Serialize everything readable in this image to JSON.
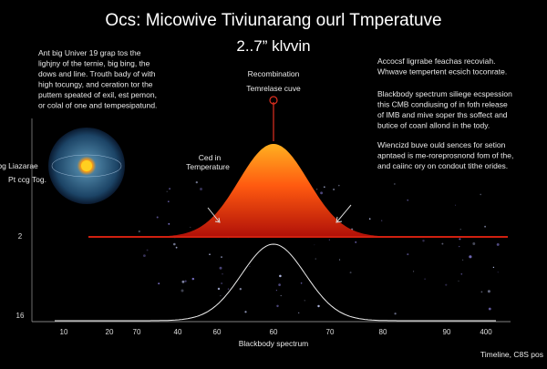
{
  "header": {
    "title": "Ocs: Micowive Tiviunarang ourl Tmperatuve",
    "subtitle": "2..7” klvvin"
  },
  "left_text": [
    "Ant big Univer 19 grap tos the",
    "lighjny of the ternie, big bing, the",
    "dows and line. Trouth bady of with",
    "high tocungy, and ceration tor the",
    "puttem speated of exil, est pemon,",
    "or colal of one and tempesipatund."
  ],
  "right_top": [
    "Accocsf ligrrabe feachas recoviah.",
    "Whwave tempertent ecsich toconrate."
  ],
  "right_mid": [
    "Blackbody spectrum siliege ecspession",
    "this CMB condiusing of in foth release",
    "of IMB and mive soper ths soffect and",
    "butice of coanl allond in the tody."
  ],
  "right_low": [
    "Wiencizd buve ould sences for setion",
    "apntaed is me-roreprosnond fom of the,",
    "and caiinc ory on condout tithe orides."
  ],
  "center_label": [
    "Recombination",
    "Temrelase cuve"
  ],
  "left_label": [
    "Ced in",
    "Temperature"
  ],
  "y_label": [
    "Cotibg Liazarae",
    "Pt  ccg  Tog."
  ],
  "y_ticks": [
    "2",
    "16"
  ],
  "x_ticks": [
    "10",
    "20",
    "70",
    "40",
    "60",
    "60",
    "70",
    "80",
    "90",
    "400"
  ],
  "x_label": "Blackbody spectrum",
  "corner": "Timeline, C8S pos"
}
